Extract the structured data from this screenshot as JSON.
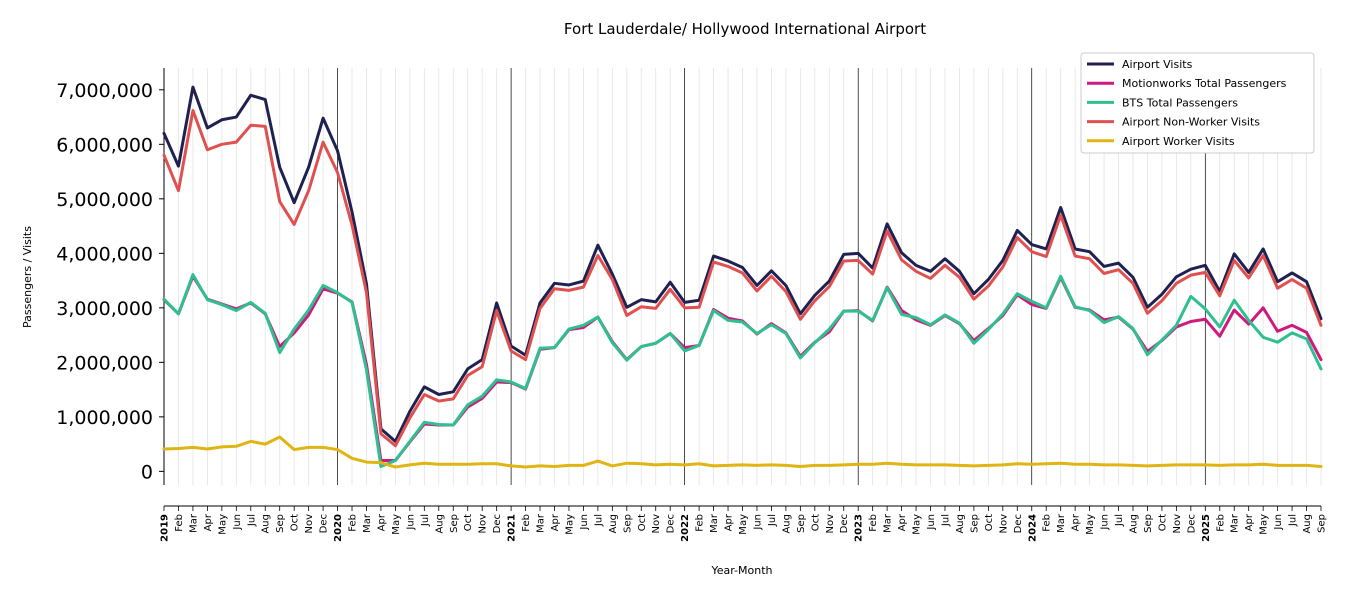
{
  "chart_data": {
    "type": "line",
    "title": "Fort Lauderdale/ Hollywood International Airport",
    "xlabel": "Year-Month",
    "ylabel": "Passengers / Visits",
    "ylim": [
      -250000,
      7400000
    ],
    "yticks": [
      0,
      1000000,
      2000000,
      3000000,
      4000000,
      5000000,
      6000000,
      7000000
    ],
    "ytick_labels": [
      "0",
      "1,000,000",
      "2,000,000",
      "3,000,000",
      "4,000,000",
      "5,000,000",
      "6,000,000",
      "7,000,000"
    ],
    "x_start": "2019-01",
    "x_end": "2025-09",
    "month_labels": [
      "Feb",
      "Mar",
      "Apr",
      "May",
      "Jun",
      "Jul",
      "Aug",
      "Sep",
      "Oct",
      "Nov",
      "Dec"
    ],
    "year_labels": [
      "2019",
      "2020",
      "2021",
      "2022",
      "2023",
      "2024",
      "2025"
    ],
    "grid": "vertical-monthly",
    "legend_position": "top-right",
    "series": [
      {
        "name": "Airport Visits",
        "color": "#1f2150",
        "values": [
          6200000,
          5600000,
          7050000,
          6300000,
          6450000,
          6500000,
          6900000,
          6820000,
          5580000,
          4930000,
          5580000,
          6480000,
          5880000,
          4760000,
          3440000,
          780000,
          550000,
          1100000,
          1550000,
          1410000,
          1460000,
          1880000,
          2050000,
          3090000,
          2300000,
          2130000,
          3090000,
          3450000,
          3420000,
          3490000,
          4150000,
          3620000,
          3010000,
          3150000,
          3110000,
          3470000,
          3100000,
          3140000,
          3950000,
          3860000,
          3740000,
          3410000,
          3680000,
          3410000,
          2890000,
          3230000,
          3490000,
          3980000,
          4000000,
          3730000,
          4540000,
          4010000,
          3780000,
          3670000,
          3900000,
          3670000,
          3260000,
          3520000,
          3870000,
          4420000,
          4160000,
          4080000,
          4840000,
          4080000,
          4030000,
          3760000,
          3820000,
          3560000,
          3010000,
          3250000,
          3570000,
          3710000,
          3780000,
          3300000,
          3990000,
          3650000,
          4080000,
          3480000,
          3640000,
          3480000,
          2800000
        ]
      },
      {
        "name": "Motionworks Total Passengers",
        "color": "#d0197f",
        "values": [
          3150000,
          2890000,
          3580000,
          3160000,
          3070000,
          2980000,
          3090000,
          2890000,
          2290000,
          2540000,
          2870000,
          3350000,
          3270000,
          3110000,
          1960000,
          200000,
          200000,
          540000,
          870000,
          850000,
          850000,
          1180000,
          1340000,
          1640000,
          1630000,
          1510000,
          2240000,
          2270000,
          2600000,
          2640000,
          2830000,
          2380000,
          2050000,
          2290000,
          2350000,
          2530000,
          2270000,
          2310000,
          2970000,
          2810000,
          2760000,
          2520000,
          2710000,
          2540000,
          2110000,
          2370000,
          2560000,
          2940000,
          2950000,
          2760000,
          3380000,
          2950000,
          2780000,
          2680000,
          2860000,
          2710000,
          2400000,
          2620000,
          2860000,
          3240000,
          3060000,
          2990000,
          3560000,
          3010000,
          2960000,
          2780000,
          2830000,
          2610000,
          2200000,
          2400000,
          2650000,
          2750000,
          2790000,
          2480000,
          2960000,
          2700000,
          3000000,
          2570000,
          2680000,
          2550000,
          2050000
        ]
      },
      {
        "name": "BTS Total Passengers",
        "color": "#2ec090",
        "values": [
          3160000,
          2890000,
          3610000,
          3150000,
          3060000,
          2950000,
          3100000,
          2900000,
          2180000,
          2610000,
          2960000,
          3410000,
          3280000,
          3100000,
          1860000,
          90000,
          200000,
          550000,
          900000,
          860000,
          850000,
          1220000,
          1380000,
          1680000,
          1640000,
          1520000,
          2260000,
          2270000,
          2610000,
          2680000,
          2830000,
          2360000,
          2040000,
          2290000,
          2350000,
          2530000,
          2210000,
          2310000,
          2950000,
          2770000,
          2740000,
          2530000,
          2690000,
          2530000,
          2080000,
          2360000,
          2610000,
          2940000,
          2940000,
          2770000,
          3370000,
          2880000,
          2820000,
          2690000,
          2870000,
          2720000,
          2350000,
          2600000,
          2890000,
          3260000,
          3120000,
          3000000,
          3580000,
          3020000,
          2950000,
          2730000,
          2840000,
          2620000,
          2140000,
          2410000,
          2680000,
          3210000,
          2980000,
          2650000,
          3140000,
          2770000,
          2460000,
          2370000,
          2540000,
          2430000,
          1880000
        ]
      },
      {
        "name": "Airport Non-Worker Visits",
        "color": "#e05050",
        "values": [
          5800000,
          5150000,
          6620000,
          5900000,
          6000000,
          6040000,
          6350000,
          6330000,
          4950000,
          4530000,
          5150000,
          6040000,
          5480000,
          4520000,
          3280000,
          690000,
          470000,
          980000,
          1410000,
          1290000,
          1330000,
          1760000,
          1920000,
          2950000,
          2210000,
          2050000,
          2990000,
          3350000,
          3320000,
          3380000,
          3960000,
          3520000,
          2860000,
          3020000,
          2990000,
          3340000,
          3000000,
          3010000,
          3840000,
          3760000,
          3640000,
          3310000,
          3580000,
          3300000,
          2790000,
          3130000,
          3390000,
          3860000,
          3870000,
          3620000,
          4410000,
          3880000,
          3670000,
          3540000,
          3780000,
          3560000,
          3160000,
          3400000,
          3750000,
          4290000,
          4030000,
          3940000,
          4700000,
          3950000,
          3900000,
          3630000,
          3700000,
          3450000,
          2900000,
          3130000,
          3450000,
          3600000,
          3650000,
          3220000,
          3870000,
          3550000,
          3960000,
          3360000,
          3520000,
          3360000,
          2680000
        ]
      },
      {
        "name": "Airport Worker Visits",
        "color": "#e0b412",
        "values": [
          410000,
          420000,
          440000,
          410000,
          450000,
          460000,
          550000,
          500000,
          630000,
          400000,
          440000,
          440000,
          400000,
          240000,
          170000,
          160000,
          80000,
          120000,
          150000,
          130000,
          130000,
          130000,
          140000,
          140000,
          100000,
          80000,
          100000,
          90000,
          110000,
          110000,
          190000,
          100000,
          150000,
          140000,
          120000,
          130000,
          120000,
          140000,
          100000,
          110000,
          120000,
          110000,
          120000,
          110000,
          90000,
          110000,
          110000,
          120000,
          130000,
          130000,
          150000,
          130000,
          120000,
          120000,
          120000,
          110000,
          100000,
          110000,
          120000,
          140000,
          130000,
          140000,
          150000,
          130000,
          130000,
          120000,
          120000,
          110000,
          100000,
          110000,
          120000,
          120000,
          120000,
          110000,
          120000,
          120000,
          130000,
          110000,
          110000,
          110000,
          90000
        ]
      }
    ]
  }
}
